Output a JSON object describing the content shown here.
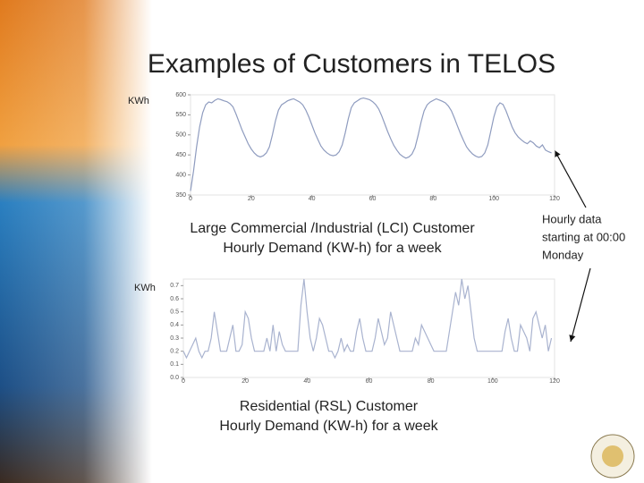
{
  "slide": {
    "title": "Examples of Customers in TELOS",
    "note": [
      "Hourly data",
      "starting at 00:00",
      "Monday"
    ]
  },
  "chart_data": [
    {
      "type": "line",
      "ylabel": "KWh",
      "caption": [
        "Large Commercial /Industrial (LCI) Customer",
        "Hourly Demand (KW-h) for a week"
      ],
      "color": "#8f9cbf",
      "xlim": [
        0,
        120
      ],
      "xticks": [
        0,
        20,
        40,
        60,
        80,
        100,
        120
      ],
      "ylim": [
        350,
        600
      ],
      "yticks": [
        350,
        400,
        450,
        500,
        550,
        600
      ],
      "x": [
        0,
        1,
        2,
        3,
        4,
        5,
        6,
        7,
        8,
        9,
        10,
        11,
        12,
        13,
        14,
        15,
        16,
        17,
        18,
        19,
        20,
        21,
        22,
        23,
        24,
        25,
        26,
        27,
        28,
        29,
        30,
        31,
        32,
        33,
        34,
        35,
        36,
        37,
        38,
        39,
        40,
        41,
        42,
        43,
        44,
        45,
        46,
        47,
        48,
        49,
        50,
        51,
        52,
        53,
        54,
        55,
        56,
        57,
        58,
        59,
        60,
        61,
        62,
        63,
        64,
        65,
        66,
        67,
        68,
        69,
        70,
        71,
        72,
        73,
        74,
        75,
        76,
        77,
        78,
        79,
        80,
        81,
        82,
        83,
        84,
        85,
        86,
        87,
        88,
        89,
        90,
        91,
        92,
        93,
        94,
        95,
        96,
        97,
        98,
        99,
        100,
        101,
        102,
        103,
        104,
        105,
        106,
        107,
        108,
        109,
        110,
        111,
        112,
        113,
        114,
        115,
        116,
        117,
        118,
        119
      ],
      "values": [
        360,
        410,
        470,
        520,
        555,
        575,
        582,
        580,
        586,
        590,
        588,
        585,
        583,
        578,
        570,
        552,
        532,
        512,
        495,
        478,
        465,
        455,
        448,
        445,
        448,
        455,
        470,
        500,
        535,
        562,
        575,
        580,
        585,
        588,
        590,
        586,
        582,
        575,
        562,
        545,
        525,
        505,
        488,
        472,
        462,
        455,
        450,
        448,
        450,
        458,
        475,
        505,
        540,
        568,
        580,
        585,
        590,
        592,
        590,
        588,
        583,
        576,
        565,
        548,
        528,
        508,
        490,
        474,
        462,
        452,
        446,
        442,
        445,
        452,
        468,
        498,
        532,
        560,
        575,
        582,
        586,
        590,
        587,
        584,
        580,
        572,
        560,
        542,
        522,
        503,
        486,
        470,
        460,
        452,
        447,
        444,
        446,
        455,
        475,
        510,
        545,
        570,
        580,
        576,
        560,
        540,
        520,
        505,
        495,
        488,
        482,
        478,
        485,
        480,
        472,
        468,
        475,
        462,
        458,
        455
      ]
    },
    {
      "type": "line",
      "ylabel": "KWh",
      "caption": [
        "Residential (RSL) Customer",
        "Hourly Demand (KW-h) for a week"
      ],
      "color": "#a9b3cf",
      "xlim": [
        0,
        120
      ],
      "xticks": [
        0,
        20,
        40,
        60,
        80,
        100,
        120
      ],
      "ylim": [
        0,
        0.75
      ],
      "yticks": [
        {
          "value": 0,
          "label": "0.0"
        },
        0.1,
        0.2,
        0.3,
        0.4,
        0.5,
        0.6,
        0.7
      ],
      "x": [
        0,
        1,
        2,
        3,
        4,
        5,
        6,
        7,
        8,
        9,
        10,
        11,
        12,
        13,
        14,
        15,
        16,
        17,
        18,
        19,
        20,
        21,
        22,
        23,
        24,
        25,
        26,
        27,
        28,
        29,
        30,
        31,
        32,
        33,
        34,
        35,
        36,
        37,
        38,
        39,
        40,
        41,
        42,
        43,
        44,
        45,
        46,
        47,
        48,
        49,
        50,
        51,
        52,
        53,
        54,
        55,
        56,
        57,
        58,
        59,
        60,
        61,
        62,
        63,
        64,
        65,
        66,
        67,
        68,
        69,
        70,
        71,
        72,
        73,
        74,
        75,
        76,
        77,
        78,
        79,
        80,
        81,
        82,
        83,
        84,
        85,
        86,
        87,
        88,
        89,
        90,
        91,
        92,
        93,
        94,
        95,
        96,
        97,
        98,
        99,
        100,
        101,
        102,
        103,
        104,
        105,
        106,
        107,
        108,
        109,
        110,
        111,
        112,
        113,
        114,
        115,
        116,
        117,
        118,
        119
      ],
      "values": [
        0.2,
        0.15,
        0.2,
        0.25,
        0.3,
        0.2,
        0.15,
        0.2,
        0.2,
        0.3,
        0.5,
        0.35,
        0.2,
        0.2,
        0.2,
        0.3,
        0.4,
        0.2,
        0.2,
        0.25,
        0.5,
        0.45,
        0.3,
        0.2,
        0.2,
        0.2,
        0.2,
        0.3,
        0.2,
        0.4,
        0.2,
        0.35,
        0.25,
        0.2,
        0.2,
        0.2,
        0.2,
        0.2,
        0.55,
        0.75,
        0.5,
        0.3,
        0.2,
        0.3,
        0.45,
        0.4,
        0.3,
        0.2,
        0.2,
        0.15,
        0.2,
        0.3,
        0.2,
        0.25,
        0.2,
        0.2,
        0.35,
        0.45,
        0.3,
        0.2,
        0.2,
        0.2,
        0.3,
        0.45,
        0.35,
        0.25,
        0.3,
        0.5,
        0.4,
        0.3,
        0.2,
        0.2,
        0.2,
        0.2,
        0.2,
        0.3,
        0.25,
        0.4,
        0.35,
        0.3,
        0.25,
        0.2,
        0.2,
        0.2,
        0.2,
        0.2,
        0.35,
        0.5,
        0.65,
        0.55,
        0.75,
        0.6,
        0.7,
        0.5,
        0.3,
        0.2,
        0.2,
        0.2,
        0.2,
        0.2,
        0.2,
        0.2,
        0.2,
        0.2,
        0.35,
        0.45,
        0.3,
        0.2,
        0.2,
        0.4,
        0.35,
        0.3,
        0.2,
        0.45,
        0.5,
        0.4,
        0.3,
        0.4,
        0.2,
        0.3
      ]
    }
  ]
}
